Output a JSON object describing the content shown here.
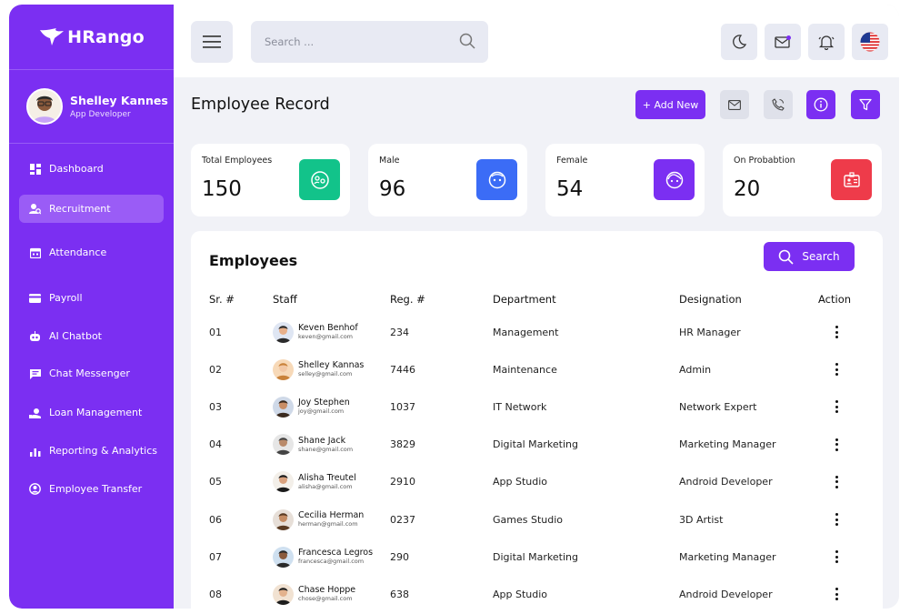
{
  "app": {
    "name": "HRango"
  },
  "user": {
    "name": "Shelley Kannes",
    "role": "App Developer"
  },
  "sidebar": {
    "items": [
      {
        "label": "Dashboard",
        "icon": "dashboard-icon",
        "active": false
      },
      {
        "label": "Recruitment",
        "icon": "recruitment-icon",
        "active": true
      },
      {
        "label": "Attendance",
        "icon": "calendar-icon",
        "active": false
      },
      {
        "label": "Payroll",
        "icon": "card-icon",
        "active": false
      },
      {
        "label": "AI Chatbot",
        "icon": "bot-icon",
        "active": false
      },
      {
        "label": "Chat Messenger",
        "icon": "chat-icon",
        "active": false
      },
      {
        "label": "Loan Management",
        "icon": "loan-icon",
        "active": false
      },
      {
        "label": "Reporting & Analytics",
        "icon": "bar-chart-icon",
        "active": false
      },
      {
        "label": "Employee Transfer",
        "icon": "transfer-icon",
        "active": false
      }
    ]
  },
  "topbar": {
    "search_placeholder": "Search ..."
  },
  "page": {
    "title": "Employee Record",
    "add_new_label": "+ Add New"
  },
  "stats": [
    {
      "label": "Total Employees",
      "value": "150",
      "color": "#12c38a",
      "icon": "users-icon"
    },
    {
      "label": "Male",
      "value": "96",
      "color": "#3b6cf6",
      "icon": "male-face-icon"
    },
    {
      "label": "Female",
      "value": "54",
      "color": "#7b2ff2",
      "icon": "female-face-icon"
    },
    {
      "label": "On Probabtion",
      "value": "20",
      "color": "#ee3b4a",
      "icon": "id-badge-icon"
    }
  ],
  "employees": {
    "title": "Employees",
    "search_label": "Search",
    "columns": [
      "Sr. #",
      "Staff",
      "Reg. #",
      "Department",
      "Designation",
      "Action"
    ],
    "rows": [
      {
        "sr": "01",
        "name": "Keven Benhof",
        "email": "keven@gmail.com",
        "reg": "234",
        "department": "Management",
        "designation": "HR Manager"
      },
      {
        "sr": "02",
        "name": "Shelley Kannas",
        "email": "selley@gmail.com",
        "reg": "7446",
        "department": "Maintenance",
        "designation": "Admin"
      },
      {
        "sr": "03",
        "name": "Joy Stephen",
        "email": "joy@gmail.com",
        "reg": "1037",
        "department": "IT Network",
        "designation": "Network Expert"
      },
      {
        "sr": "04",
        "name": "Shane Jack",
        "email": "shane@gmail.com",
        "reg": "3829",
        "department": "Digital Marketing",
        "designation": "Marketing Manager"
      },
      {
        "sr": "05",
        "name": "Alisha Treutel",
        "email": "alisha@gmail.com",
        "reg": "2910",
        "department": "App Studio",
        "designation": "Android Developer"
      },
      {
        "sr": "06",
        "name": "Cecilia Herman",
        "email": "herman@gmail.com",
        "reg": "0237",
        "department": "Games Studio",
        "designation": "3D Artist"
      },
      {
        "sr": "07",
        "name": "Francesca Legros",
        "email": "francesca@gmail.com",
        "reg": "290",
        "department": "Digital Marketing",
        "designation": "Marketing Manager"
      },
      {
        "sr": "08",
        "name": "Chase Hoppe",
        "email": "chose@gmail.com",
        "reg": "638",
        "department": "App Studio",
        "designation": "Android Developer"
      }
    ]
  },
  "theme": {
    "accent": "#7b2ff2",
    "background": "#f1f2f7"
  }
}
